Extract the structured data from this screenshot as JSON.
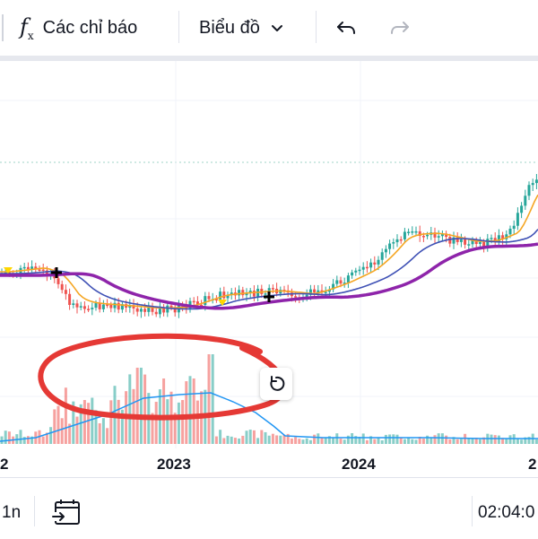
{
  "toolbar": {
    "indicators_label": "Các chỉ báo",
    "chart_label": "Biểu đồ"
  },
  "x_axis": {
    "left_partial": "2",
    "label_2023": "2023",
    "label_2024": "2024",
    "right_partial": "2"
  },
  "bottom": {
    "interval_partial": "1n",
    "time": "02:04:0"
  },
  "colors": {
    "up": "#26a69a",
    "down": "#ef5350",
    "ma_purple": "#8e24aa",
    "ma_blue": "#3f51b5",
    "ma_orange": "#f5a623",
    "volume_ma": "#2196f3",
    "annotation": "#e53935"
  }
}
